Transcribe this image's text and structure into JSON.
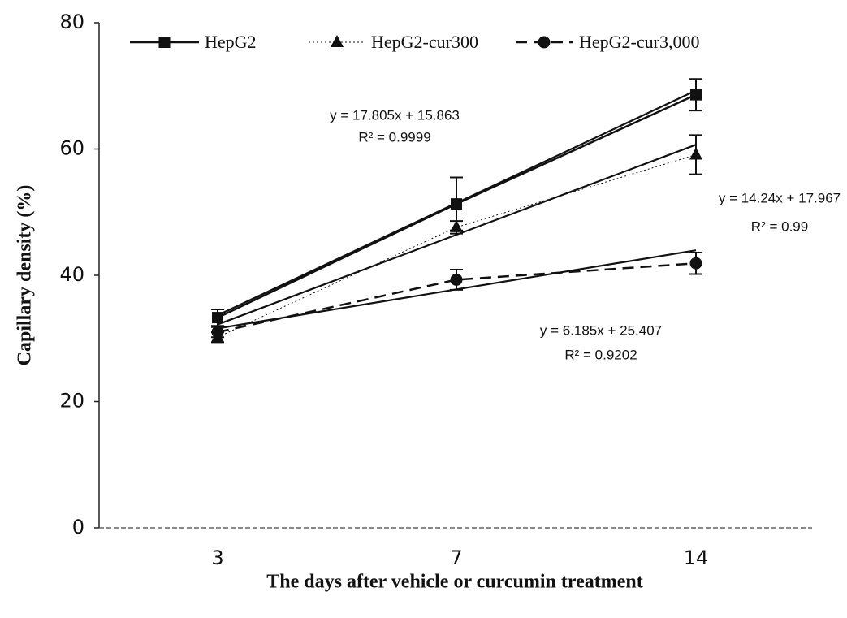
{
  "chart_data": {
    "type": "line",
    "x_label": "The days after vehicle or curcumin treatment",
    "y_label": "Capillary density (%)",
    "categories": [
      "3",
      "7",
      "14"
    ],
    "ylim": [
      0,
      80
    ],
    "yticks": [
      0,
      20,
      40,
      60,
      80
    ],
    "legend": "top",
    "series": [
      {
        "name": "HepG2",
        "color": "#111111",
        "marker": "square",
        "dash": "solid",
        "values": [
          33.3,
          51.3,
          68.6
        ],
        "errors": [
          1.3,
          4.2,
          2.5
        ]
      },
      {
        "name": "HepG2-cur300",
        "color": "#111111",
        "marker": "triangle",
        "dash": "dotted",
        "values": [
          30.2,
          47.6,
          59.1
        ],
        "errors": [
          0.8,
          1.0,
          3.1
        ]
      },
      {
        "name": "HepG2-cur3,000",
        "color": "#111111",
        "marker": "circle",
        "dash": "dashed",
        "values": [
          31.0,
          39.3,
          41.9
        ],
        "errors": [
          0.8,
          1.6,
          1.7
        ]
      }
    ],
    "trendlines": [
      {
        "slope": 17.805,
        "intercept": 15.863,
        "equation": "y = 17.805x + 15.863",
        "r2": "R² = 0.9999"
      },
      {
        "slope": 14.24,
        "intercept": 17.967,
        "equation": "y = 14.24x + 17.967",
        "r2": "R² = 0.99"
      },
      {
        "slope": 6.185,
        "intercept": 25.407,
        "equation": "y = 6.185x + 25.407",
        "r2": "R² = 0.9202"
      }
    ]
  }
}
